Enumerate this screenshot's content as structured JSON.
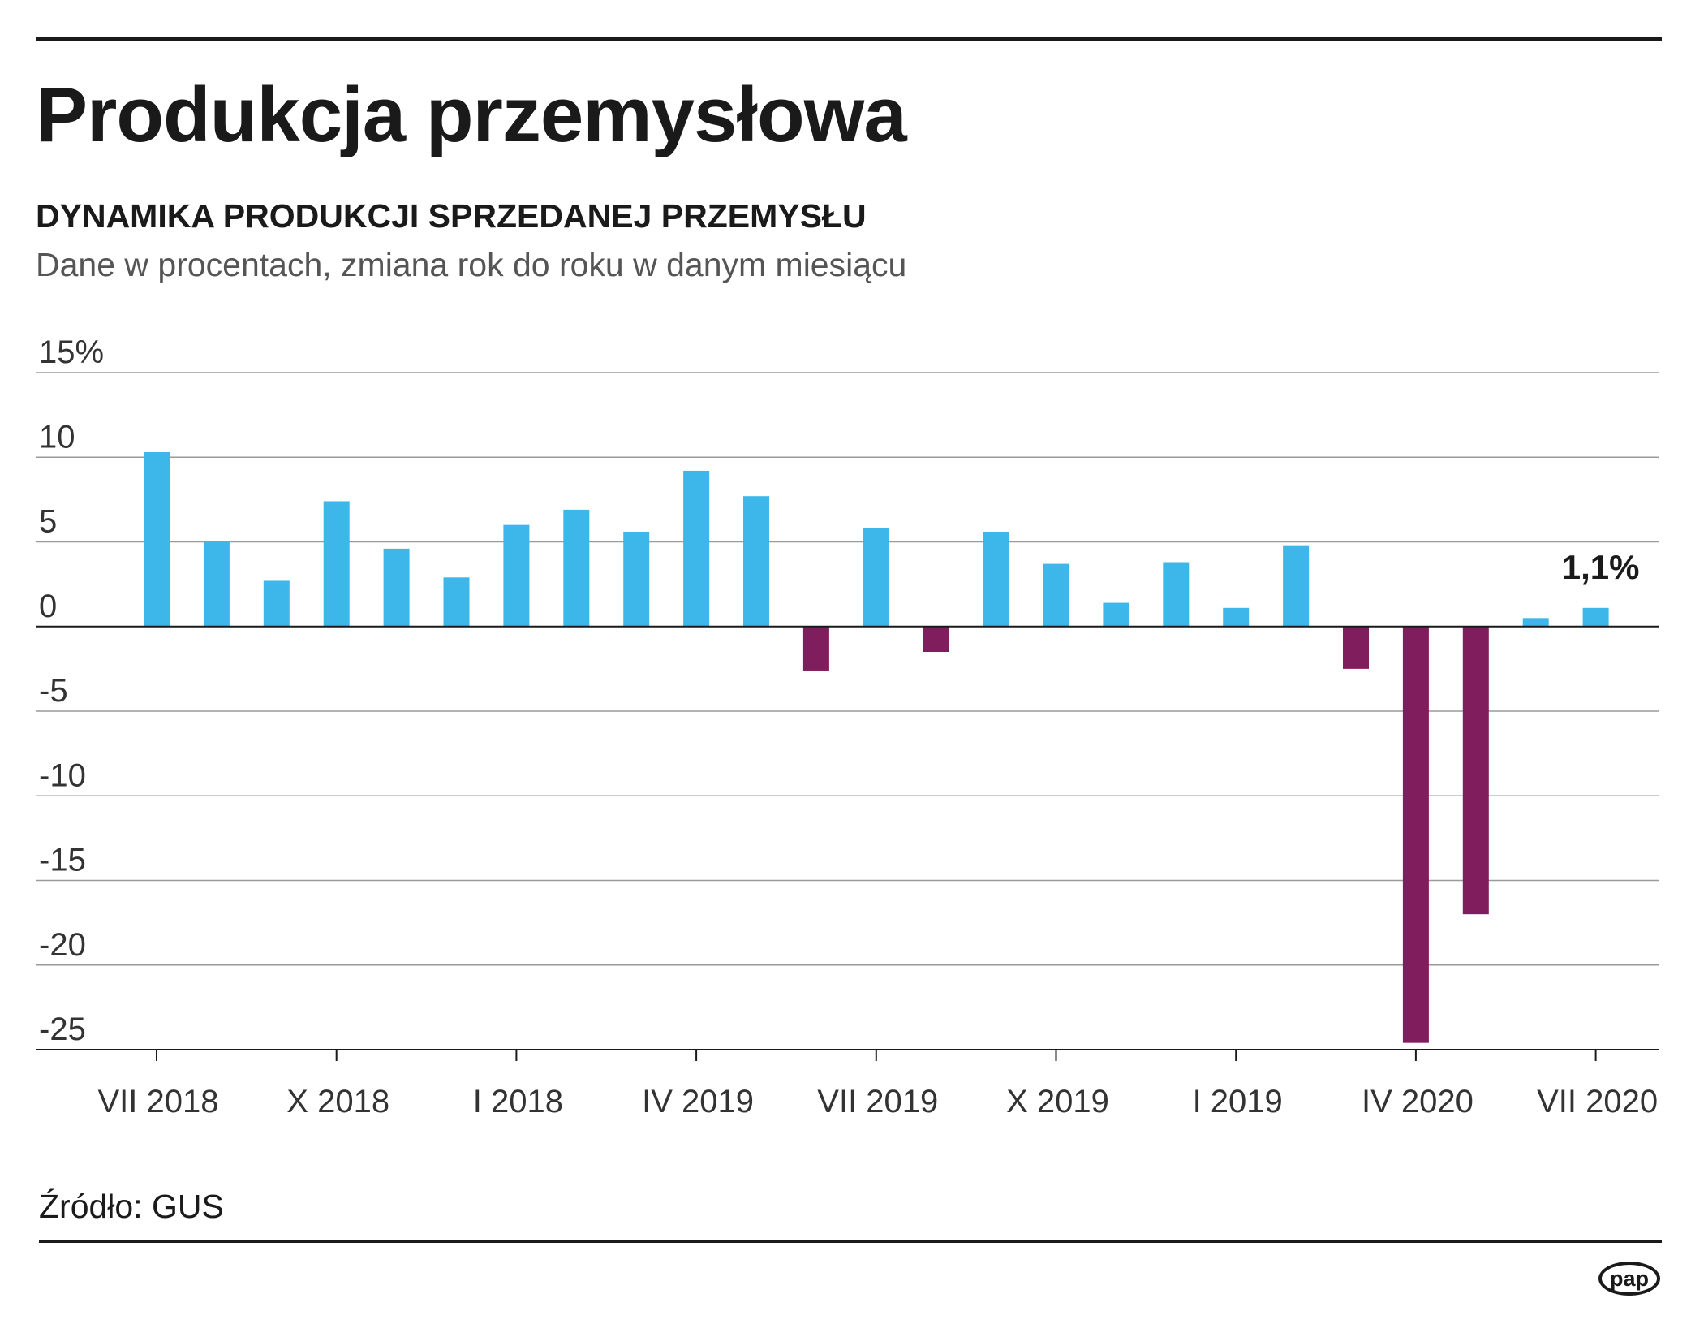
{
  "header": {
    "title": "Produkcja przemysłowa",
    "subtitle": "DYNAMIKA PRODUKCJI SPRZEDANEJ PRZEMYSŁU",
    "description": "Dane w procentach, zmiana rok do roku w danym miesiącu"
  },
  "footer": {
    "source": "Źródło: GUS",
    "logo_text": "pap"
  },
  "colors": {
    "positive": "#3db7e9",
    "negative": "#801d5d",
    "grid": "#9a9a9a",
    "axis": "#1a1a1a"
  },
  "chart_data": {
    "type": "bar",
    "title": "Produkcja przemysłowa",
    "subtitle": "DYNAMIKA PRODUKCJI SPRZEDANEJ PRZEMYSŁU",
    "xlabel": "",
    "ylabel": "Dane w procentach, zmiana rok do roku w danym miesiącu",
    "ylim": [
      -25,
      15
    ],
    "yticks": [
      15,
      10,
      5,
      0,
      -5,
      -10,
      -15,
      -20,
      -25
    ],
    "ytick_labels": [
      "15%",
      "10",
      "5",
      "0",
      "-5",
      "-10",
      "-15",
      "-20",
      "-25"
    ],
    "values": [
      10.3,
      5.0,
      2.7,
      7.4,
      4.6,
      2.9,
      6.0,
      6.9,
      5.6,
      9.2,
      7.7,
      -2.6,
      5.8,
      -1.5,
      5.6,
      3.7,
      1.4,
      3.8,
      1.1,
      4.8,
      -2.5,
      -24.6,
      -17.0,
      0.5,
      1.1
    ],
    "xtick_labels": [
      {
        "index": 0,
        "label": "VII 2018"
      },
      {
        "index": 3,
        "label": "X 2018"
      },
      {
        "index": 6,
        "label": "I 2018"
      },
      {
        "index": 9,
        "label": "IV 2019"
      },
      {
        "index": 12,
        "label": "VII 2019"
      },
      {
        "index": 15,
        "label": "X 2019"
      },
      {
        "index": 18,
        "label": "I 2019"
      },
      {
        "index": 21,
        "label": "IV 2020"
      },
      {
        "index": 24,
        "label": "VII 2020"
      }
    ],
    "annotations": [
      {
        "index": 24,
        "text": "1,1%"
      }
    ],
    "grid": true
  }
}
